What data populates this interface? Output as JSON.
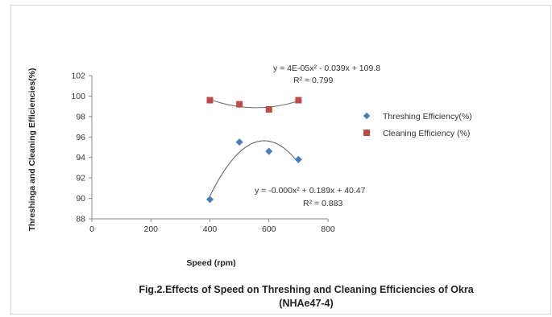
{
  "chart_data": {
    "type": "scatter",
    "xlabel": "Speed (rpm)",
    "ylabel": "Threshinga and Cleaning Efficiencies(%)",
    "xlim": [
      0,
      800
    ],
    "ylim": [
      88,
      102
    ],
    "xticks": [
      "0",
      "200",
      "400",
      "600",
      "800"
    ],
    "yticks": [
      "88",
      "90",
      "92",
      "94",
      "96",
      "98",
      "100",
      "102"
    ],
    "grid": false,
    "legend_position": "right",
    "series": [
      {
        "name": "Threshing Efficiency(%)",
        "marker": "diamond",
        "color": "#4a7ebb",
        "x": [
          400,
          500,
          600,
          700
        ],
        "y": [
          89.9,
          95.5,
          94.6,
          93.8
        ],
        "trend_equation": "y = -0.000x² + 0.189x + 40.47",
        "trend_r2": "R² = 0.883"
      },
      {
        "name": "Cleaning Efficiency (%)",
        "marker": "square",
        "color": "#be4b48",
        "x": [
          400,
          500,
          600,
          700
        ],
        "y": [
          99.6,
          99.2,
          98.7,
          99.6
        ],
        "trend_equation": "y = 4E-05x² - 0.039x + 109.8",
        "trend_r2": "R² = 0.799"
      }
    ]
  },
  "caption": {
    "line1": "Fig.2.Effects of Speed on Threshing and Cleaning Efficiencies of Okra",
    "line2": "(NHAe47-4)"
  }
}
